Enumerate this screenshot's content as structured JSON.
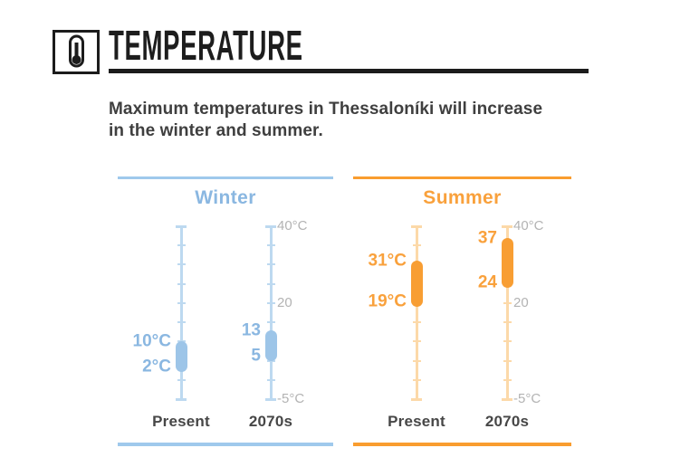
{
  "header": {
    "title": "TEMPERATURE",
    "icon": "thermometer"
  },
  "subtitle": {
    "line1": "Maximum temperatures in Thessaloníki will increase",
    "line2": "in the winter and summer."
  },
  "theme": {
    "ink": "#1c1c1c",
    "subtitle_text": "#3f3f3f",
    "category_text": "#474747",
    "scale_gray": "#b3b3b3",
    "background": "#ffffff"
  },
  "chart_data": {
    "type": "range",
    "unit": "°C",
    "scale": {
      "min": -5,
      "max": 40,
      "tick_step": 5,
      "labels": [
        {
          "value": 40,
          "text": "40°C"
        },
        {
          "value": 20,
          "text": "20"
        },
        {
          "value": -5,
          "text": "-5°C"
        }
      ]
    },
    "panels": [
      {
        "name": "Winter",
        "colors": {
          "accent": "#8ab7e1",
          "light": "#bdd9f0",
          "capsule": "#9dc5e8",
          "rule": "#9fc9ec"
        },
        "items": [
          {
            "label": "Present",
            "high": 10,
            "low": 2,
            "high_text": "10°C",
            "low_text": "2°C"
          },
          {
            "label": "2070s",
            "high": 13,
            "low": 5,
            "high_text": "13",
            "low_text": "5"
          }
        ]
      },
      {
        "name": "Summer",
        "colors": {
          "accent": "#f9a13c",
          "light": "#fcd9a9",
          "capsule": "#f89e33",
          "rule": "#f99d2f"
        },
        "items": [
          {
            "label": "Present",
            "high": 31,
            "low": 19,
            "high_text": "31°C",
            "low_text": "19°C"
          },
          {
            "label": "2070s",
            "high": 37,
            "low": 24,
            "high_text": "37",
            "low_text": "24"
          }
        ]
      }
    ]
  }
}
